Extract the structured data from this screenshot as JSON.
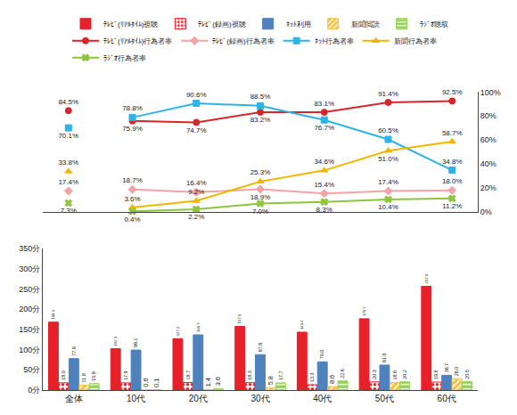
{
  "chart_data": [
    {
      "type": "line",
      "categories": [
        "全体",
        "10代",
        "20代",
        "30代",
        "40代",
        "50代",
        "60代"
      ],
      "ylim": [
        0,
        100
      ],
      "yticks": [
        {
          "value": 0,
          "label": "0%"
        },
        {
          "value": 20,
          "label": "20%"
        },
        {
          "value": 40,
          "label": "40%"
        },
        {
          "value": 60,
          "label": "60%"
        },
        {
          "value": 80,
          "label": "80%"
        },
        {
          "value": 100,
          "label": "100%"
        }
      ],
      "grid": false,
      "legend": "top",
      "data_labels": true,
      "tick_labels": "y",
      "series": [
        {
          "name": "ﾃﾚﾋﾞ(ﾘｱﾙﾀｲﾑ)行為者率",
          "color": "#d7262b",
          "marker": "circle",
          "values": [
            84.5,
            75.9,
            74.7,
            83.2,
            83.1,
            91.4,
            92.5
          ],
          "value_labels": [
            "84.5%",
            "75.9%",
            "74.7%",
            "83.2%",
            "83.1%",
            "91.4%",
            "92.5%"
          ]
        },
        {
          "name": "ﾃﾚﾋﾞ(録画)行為者率",
          "color": "#f4a3a8",
          "marker": "diamond",
          "values": [
            17.4,
            18.7,
            16.4,
            18.9,
            15.4,
            17.4,
            18.0
          ],
          "value_labels": [
            "17.4%",
            "18.7%",
            "16.4%",
            "18.9%",
            "15.4%",
            "17.4%",
            "18.0%"
          ]
        },
        {
          "name": "ﾈｯﾄ行為者率",
          "color": "#2eb3e8",
          "marker": "square",
          "values": [
            70.1,
            78.8,
            90.6,
            88.5,
            76.7,
            60.5,
            34.8
          ],
          "value_labels": [
            "70.1%",
            "78.8%",
            "90.6%",
            "88.5%",
            "76.7%",
            "60.5%",
            "34.8%"
          ]
        },
        {
          "name": "新聞行為者率",
          "color": "#f2b600",
          "marker": "triangle-up",
          "values": [
            33.8,
            3.6,
            9.2,
            25.3,
            34.6,
            51.0,
            58.7
          ],
          "value_labels": [
            "33.8%",
            "3.6%",
            "9.2%",
            "25.3%",
            "34.6%",
            "51.0%",
            "58.7%"
          ]
        },
        {
          "name": "ﾗｼﾞｵ行為者率",
          "color": "#8fc43f",
          "marker": "x",
          "values": [
            7.3,
            0.4,
            2.2,
            7.0,
            8.3,
            10.4,
            11.2
          ],
          "value_labels": [
            "7.3%",
            "0.4%",
            "2.2%",
            "7.0%",
            "8.3%",
            "10.4%",
            "11.2%"
          ]
        }
      ]
    },
    {
      "type": "bar",
      "categories": [
        "全体",
        "10代",
        "20代",
        "30代",
        "40代",
        "50代",
        "60代"
      ],
      "ylim": [
        0,
        350
      ],
      "yticks": [
        {
          "value": 0,
          "label": "0分"
        },
        {
          "value": 50,
          "label": "50分"
        },
        {
          "value": 100,
          "label": "100分"
        },
        {
          "value": 150,
          "label": "150分"
        },
        {
          "value": 200,
          "label": "200分"
        },
        {
          "value": 250,
          "label": "250分"
        },
        {
          "value": 300,
          "label": "300分"
        },
        {
          "value": 350,
          "label": "350分"
        }
      ],
      "grid": false,
      "legend": "top",
      "data_labels": true,
      "series": [
        {
          "name": "ﾃﾚﾋﾞ(ﾘｱﾙﾀｲﾑ)視聴",
          "color": "#e8202a",
          "marker": "solid",
          "values": [
            168.3,
            102.5,
            127.2,
            157.6,
            143.4,
            176.7,
            257.0
          ],
          "value_labels": [
            "168.3",
            "102.5",
            "127.2",
            "157.6",
            "143.4",
            "176.7",
            "257.0"
          ]
        },
        {
          "name": "ﾃﾚﾋﾞ(録画)視聴",
          "color": "#e8202a",
          "marker": "dots",
          "values": [
            18.0,
            17.9,
            18.7,
            18.3,
            13.3,
            20.3,
            19.8
          ],
          "value_labels": [
            "18.0",
            "17.9",
            "18.7",
            "18.3",
            "13.3",
            "20.3",
            "19.8"
          ]
        },
        {
          "name": "ﾈｯﾄ利用",
          "color": "#4f81bd",
          "marker": "solid",
          "values": [
            77.9,
            99.1,
            136.7,
            87.8,
            70.0,
            61.8,
            36.7
          ],
          "value_labels": [
            "77.9",
            "99.1",
            "136.7",
            "87.8",
            "70.0",
            "61.8",
            "36.7"
          ]
        },
        {
          "name": "新聞閲読",
          "color": "#f5c242",
          "marker": "hatch",
          "values": [
            11.8,
            0.6,
            1.4,
            5.8,
            8.6,
            18.6,
            28.0
          ],
          "value_labels": [
            "11.8",
            "0.6",
            "1.4",
            "5.8",
            "8.6",
            "18.6",
            "28.0"
          ]
        },
        {
          "name": "ﾗｼﾞｵ聴取",
          "color": "#92d050",
          "marker": "dash",
          "values": [
            15.9,
            0.1,
            3.6,
            17.7,
            22.6,
            20.2,
            20.5
          ],
          "value_labels": [
            "15.9",
            "0.1",
            "3.6",
            "17.7",
            "22.6",
            "20.2",
            "20.5"
          ]
        }
      ]
    }
  ]
}
